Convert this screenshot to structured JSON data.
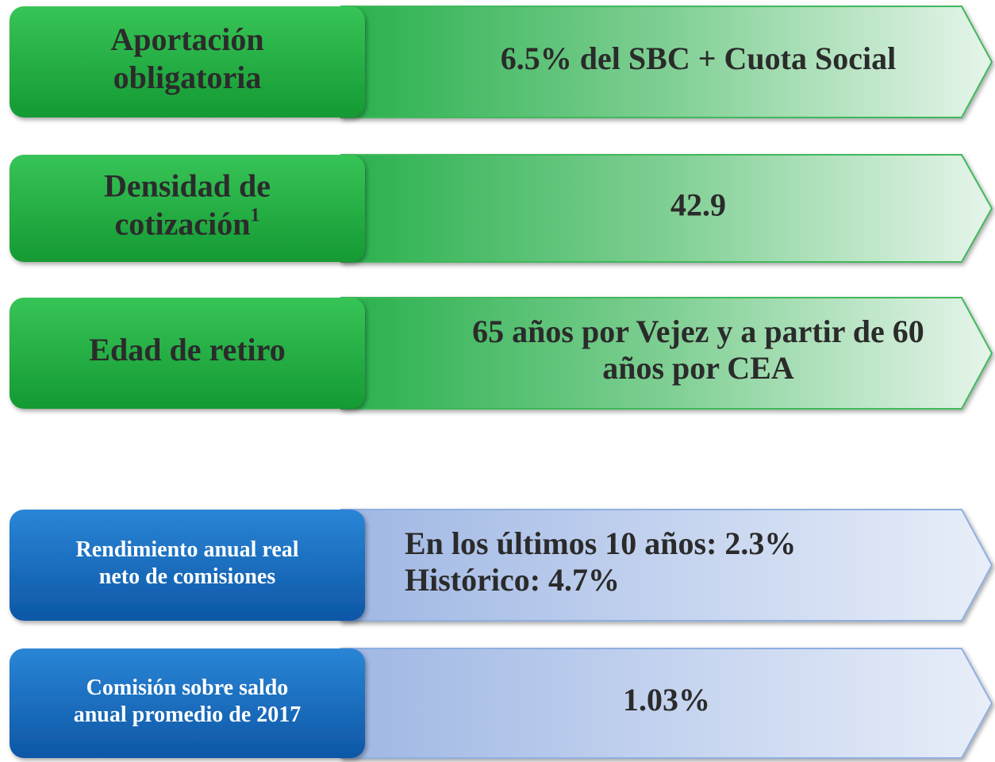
{
  "rows": [
    {
      "label": [
        "Aportación",
        "obligatoria"
      ],
      "value": [
        "6.5% del SBC + Cuota Social"
      ]
    },
    {
      "label": [
        "Densidad de",
        "cotización"
      ],
      "label_sup": "1",
      "value": [
        "42.9"
      ]
    },
    {
      "label": [
        "Edad de retiro"
      ],
      "value": [
        "65 años por Vejez y a partir de 60",
        "años por CEA"
      ]
    },
    {
      "label": [
        "Rendimiento anual real",
        "neto de comisiones"
      ],
      "value": [
        "En los últimos 10 años: 2.3%",
        "Histórico: 4.7%"
      ]
    },
    {
      "label": [
        "Comisión sobre saldo",
        "anual promedio de 2017"
      ],
      "value": [
        "1.03%"
      ]
    }
  ]
}
